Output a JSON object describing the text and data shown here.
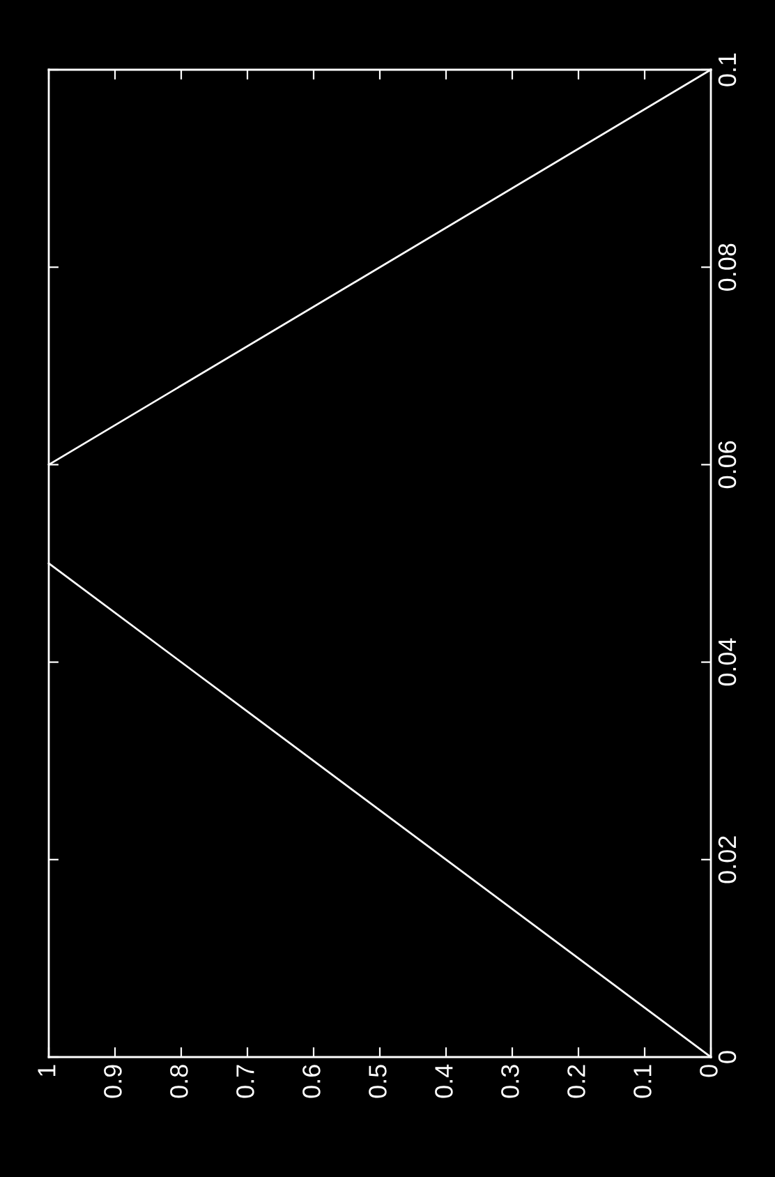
{
  "chart_data": {
    "type": "line",
    "series": [
      {
        "color": "#ffffff",
        "values": [
          0,
          0.05
        ]
      },
      {
        "color": "#ffffff",
        "values": [
          0.1,
          0.06
        ]
      }
    ],
    "x": [
      0,
      1
    ],
    "xlim": [
      1,
      0
    ],
    "xticks": [
      0,
      0.1,
      0.2,
      0.3,
      0.4,
      0.5,
      0.6,
      0.7,
      0.8,
      0.9,
      1
    ],
    "ylim": [
      0,
      0.1
    ],
    "yticks": [
      0,
      0.02,
      0.04,
      0.06,
      0.08,
      0.1
    ],
    "grid": false
  }
}
